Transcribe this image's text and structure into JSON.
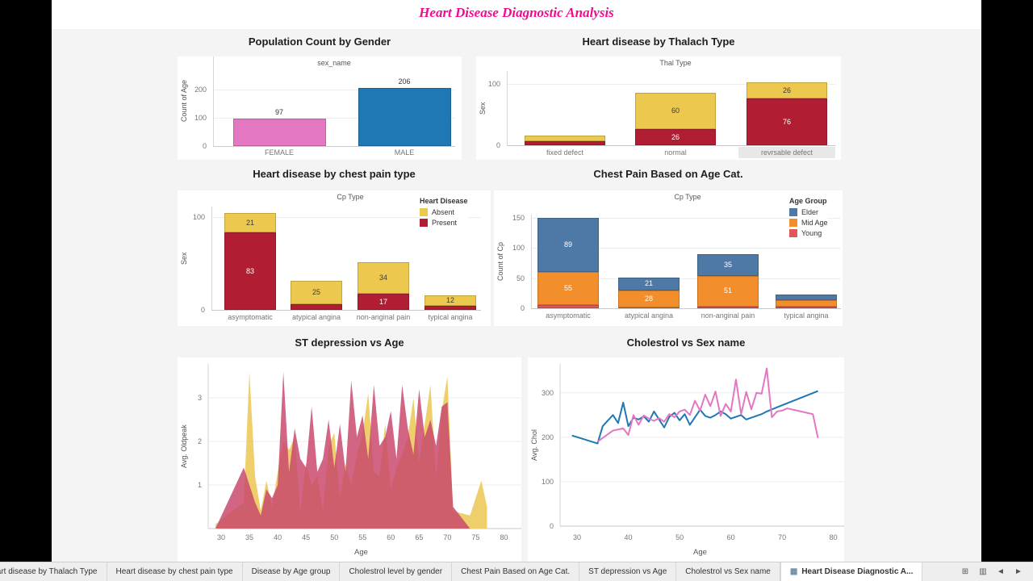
{
  "title": "Heart Disease Diagnostic Analysis",
  "colors": {
    "title_pink": "#f20a90",
    "female": "#e377c2",
    "male": "#1f77b4",
    "absent_yellow": "#ecc94e",
    "present_crimson": "#b11e33",
    "elder_blue": "#4e79a7",
    "mid_age_orange": "#f28e2b",
    "young_red": "#e15759"
  },
  "chart_data": [
    {
      "id": "gender",
      "type": "bar",
      "title": "Population Count by Gender",
      "column_header": "sex_name",
      "ylabel": "Count of Age",
      "yticks": [
        0,
        100,
        200
      ],
      "ylim": [
        0,
        320
      ],
      "categories": [
        "FEMALE",
        "MALE"
      ],
      "values": [
        97,
        206
      ],
      "bar_colors": [
        "#e377c2",
        "#1f77b4"
      ]
    },
    {
      "id": "thal",
      "type": "stacked-bar",
      "title": "Heart disease by Thalach Type",
      "column_header": "Thal Type",
      "ylabel": "Sex",
      "yticks": [
        0,
        100
      ],
      "ylim": [
        0,
        121
      ],
      "categories": [
        "fixed defect",
        "normal",
        "revrsable defect"
      ],
      "highlighted_category": "revrsable defect",
      "series": [
        {
          "name": "Present",
          "color": "#b11e33",
          "values": [
            6,
            26,
            76
          ],
          "labels": [
            "",
            "26",
            "76"
          ]
        },
        {
          "name": "Absent",
          "color": "#ecc94e",
          "values": [
            10,
            60,
            26
          ],
          "labels": [
            "",
            "60",
            "26"
          ]
        }
      ]
    },
    {
      "id": "cp",
      "type": "stacked-bar",
      "title": "Heart disease by chest pain type",
      "column_header": "Cp Type",
      "ylabel": "Sex",
      "yticks": [
        0,
        100
      ],
      "ylim": [
        0,
        111
      ],
      "categories": [
        "asymptomatic",
        "atypical angina",
        "non-anginal pain",
        "typical angina"
      ],
      "legend": {
        "title": "Heart Disease",
        "items": [
          {
            "label": "Absent",
            "color": "#ecc94e"
          },
          {
            "label": "Present",
            "color": "#b11e33"
          }
        ]
      },
      "series": [
        {
          "name": "Present",
          "color": "#b11e33",
          "values": [
            83,
            6,
            17,
            4
          ],
          "labels": [
            "83",
            "",
            "17",
            ""
          ]
        },
        {
          "name": "Absent",
          "color": "#ecc94e",
          "values": [
            21,
            25,
            34,
            12
          ],
          "labels": [
            "21",
            "25",
            "34",
            "12"
          ]
        }
      ]
    },
    {
      "id": "agecat",
      "type": "stacked-bar",
      "title": "Chest Pain Based on Age Cat.",
      "column_header": "Cp Type",
      "ylabel": "Count of Cp",
      "yticks": [
        0,
        50,
        100,
        150
      ],
      "ylim": [
        0,
        155
      ],
      "categories": [
        "asymptomatic",
        "atypical angina",
        "non-anginal pain",
        "typical angina"
      ],
      "legend": {
        "title": "Age Group",
        "items": [
          {
            "label": "Elder",
            "color": "#4e79a7"
          },
          {
            "label": "Mid Age",
            "color": "#f28e2b"
          },
          {
            "label": "Young",
            "color": "#e15759"
          }
        ]
      },
      "series": [
        {
          "name": "Young",
          "color": "#e15759",
          "values": [
            5,
            2,
            3,
            3
          ],
          "labels": [
            "",
            "",
            "",
            ""
          ]
        },
        {
          "name": "Mid Age",
          "color": "#f28e2b",
          "values": [
            55,
            28,
            51,
            10
          ],
          "labels": [
            "55",
            "28",
            "51",
            ""
          ]
        },
        {
          "name": "Elder",
          "color": "#4e79a7",
          "values": [
            89,
            21,
            35,
            10
          ],
          "labels": [
            "89",
            "21",
            "35",
            ""
          ]
        }
      ]
    },
    {
      "id": "oldpeak",
      "type": "area",
      "title": "ST depression vs Age",
      "ylabel": "Avg. Oldpeak",
      "xlabel": "Age",
      "yticks": [
        1,
        2,
        3
      ],
      "ylim": [
        0,
        3.78
      ],
      "xticks": [
        30,
        35,
        40,
        45,
        50,
        55,
        60,
        65,
        70,
        75,
        80
      ],
      "xlim": [
        28,
        81.5
      ],
      "x": [
        29,
        34,
        35,
        36,
        37,
        38,
        39,
        40,
        41,
        42,
        43,
        44,
        45,
        46,
        47,
        48,
        49,
        50,
        51,
        52,
        53,
        54,
        55,
        56,
        57,
        58,
        59,
        60,
        61,
        62,
        63,
        64,
        65,
        66,
        67,
        68,
        69,
        70,
        71,
        74,
        76,
        77
      ],
      "series": [
        {
          "name": "Absent",
          "color": "#edcb5e",
          "opacity": 0.92,
          "values": [
            0.1,
            0.6,
            3.6,
            1.2,
            0.4,
            1.1,
            0.5,
            1.3,
            2.0,
            1.8,
            2.1,
            0.4,
            1.5,
            1.0,
            1.2,
            0.4,
            1.9,
            2.2,
            0.7,
            1.5,
            1.0,
            1.7,
            2.2,
            3.1,
            1.3,
            1.2,
            2.4,
            0.9,
            1.4,
            1.7,
            2.1,
            3.0,
            1.5,
            2.4,
            3.3,
            1.2,
            2.7,
            3.5,
            0.4,
            0.3,
            1.1,
            0.5
          ]
        },
        {
          "name": "Present",
          "color": "#c94a6d",
          "opacity": 0.85,
          "values": [
            0,
            1.4,
            1.0,
            0.6,
            0.3,
            0.9,
            0.7,
            1.0,
            3.6,
            1.3,
            2.3,
            1.6,
            1.4,
            2.8,
            1.3,
            1.6,
            2.5,
            1.4,
            2.4,
            1.3,
            3.4,
            2.1,
            2.6,
            1.6,
            3.3,
            1.9,
            2.1,
            2.7,
            1.6,
            3.3,
            2.3,
            1.7,
            3.2,
            2.1,
            2.5,
            1.9,
            2.8,
            2.9,
            0.5,
            0,
            0,
            0
          ]
        }
      ]
    },
    {
      "id": "chol",
      "type": "line",
      "title": "Cholestrol vs Sex name",
      "ylabel": "Avg. Chol",
      "xlabel": "Age",
      "yticks": [
        0,
        100,
        200,
        300
      ],
      "ylim": [
        0,
        365
      ],
      "xticks": [
        30,
        40,
        50,
        60,
        70,
        80
      ],
      "xlim": [
        27,
        81
      ],
      "series": [
        {
          "name": "MALE",
          "color": "#1f77b4",
          "x": [
            29,
            34,
            35,
            37,
            38,
            39,
            40,
            41,
            42,
            43,
            44,
            45,
            46,
            47,
            48,
            49,
            50,
            51,
            52,
            54,
            55,
            56,
            57,
            58,
            59,
            60,
            61,
            62,
            63,
            66,
            67,
            70,
            77
          ],
          "values": [
            204,
            186,
            225,
            250,
            232,
            278,
            225,
            244,
            240,
            247,
            235,
            258,
            240,
            222,
            246,
            255,
            238,
            252,
            228,
            262,
            248,
            244,
            250,
            258,
            252,
            242,
            246,
            250,
            240,
            252,
            258,
            272,
            304
          ]
        },
        {
          "name": "FEMALE",
          "color": "#e377c2",
          "x": [
            34,
            37,
            39,
            40,
            41,
            42,
            43,
            44,
            45,
            46,
            47,
            48,
            49,
            50,
            51,
            52,
            53,
            54,
            55,
            56,
            57,
            58,
            59,
            60,
            61,
            62,
            63,
            64,
            65,
            66,
            67,
            68,
            69,
            70,
            71,
            76,
            77
          ],
          "values": [
            190,
            215,
            220,
            205,
            250,
            228,
            249,
            242,
            237,
            243,
            235,
            252,
            245,
            258,
            262,
            250,
            282,
            260,
            296,
            270,
            303,
            248,
            275,
            258,
            330,
            252,
            302,
            263,
            300,
            298,
            355,
            245,
            258,
            260,
            265,
            252,
            198
          ]
        }
      ]
    }
  ],
  "tabbar": {
    "tabs": [
      {
        "label": "Heart disease by Thalach Type",
        "active": false
      },
      {
        "label": "Heart disease by chest pain type",
        "active": false
      },
      {
        "label": "Disease by Age group",
        "active": false
      },
      {
        "label": "Cholestrol level by gender",
        "active": false
      },
      {
        "label": "Chest Pain Based on Age Cat.",
        "active": false
      },
      {
        "label": "ST depression vs Age",
        "active": false
      },
      {
        "label": "Cholestrol vs Sex name",
        "active": false
      },
      {
        "label": "Heart Disease Diagnostic A...",
        "active": true
      }
    ],
    "control_icons": [
      "sheet-sorter-icon",
      "filmstrip-icon",
      "previous-tab-icon",
      "next-tab-icon"
    ]
  }
}
